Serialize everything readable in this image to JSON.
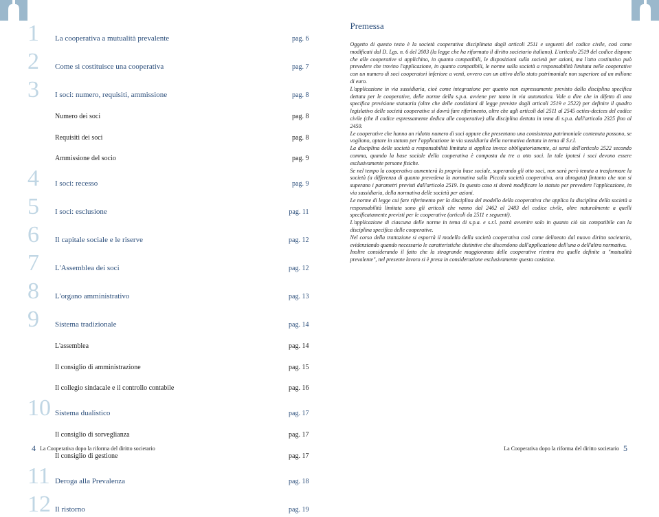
{
  "toc": [
    {
      "num": "1",
      "title": "La cooperativa a mutualità prevalente",
      "page": "pag. 6",
      "main": true
    },
    {
      "num": "2",
      "title": "Come si costituisce una cooperativa",
      "page": "pag. 7",
      "main": true
    },
    {
      "num": "3",
      "title": "I soci: numero, requisiti, ammissione",
      "page": "pag. 8",
      "main": true
    },
    {
      "num": "",
      "title": "Numero dei soci",
      "page": "pag. 8",
      "main": false
    },
    {
      "num": "",
      "title": "Requisiti dei soci",
      "page": "pag. 8",
      "main": false
    },
    {
      "num": "",
      "title": "Ammissione del socio",
      "page": "pag. 9",
      "main": false
    },
    {
      "num": "4",
      "title": "I soci: recesso",
      "page": "pag. 9",
      "main": true
    },
    {
      "num": "5",
      "title": "I soci: esclusione",
      "page": "pag. 11",
      "main": true
    },
    {
      "num": "6",
      "title": "Il capitale sociale e le riserve",
      "page": "pag. 12",
      "main": true
    },
    {
      "num": "7",
      "title": "L'Assemblea dei soci",
      "page": "pag. 12",
      "main": true
    },
    {
      "num": "8",
      "title": "L'organo amministrativo",
      "page": "pag. 13",
      "main": true
    },
    {
      "num": "9",
      "title": "Sistema tradizionale",
      "page": "pag. 14",
      "main": true
    },
    {
      "num": "",
      "title": "L'assemblea",
      "page": "pag. 14",
      "main": false
    },
    {
      "num": "",
      "title": "Il consiglio di amministrazione",
      "page": "pag. 15",
      "main": false
    },
    {
      "num": "",
      "title": "Il collegio sindacale e il controllo contabile",
      "page": "pag. 16",
      "main": false
    },
    {
      "num": "10",
      "title": "Sistema dualistico",
      "page": "pag. 17",
      "main": true
    },
    {
      "num": "",
      "title": "Il consiglio di sorveglianza",
      "page": "pag. 17",
      "main": false
    },
    {
      "num": "",
      "title": "Il consiglio di gestione",
      "page": "pag. 17",
      "main": false
    },
    {
      "num": "11",
      "title": "Deroga alla Prevalenza",
      "page": "pag. 18",
      "main": true
    },
    {
      "num": "12",
      "title": "Il ristorno",
      "page": "pag. 19",
      "main": true
    }
  ],
  "premessa": {
    "title": "Premessa",
    "body": "Oggetto di questo testo è la società cooperativa disciplinata dagli articoli 2511 e seguenti del codice civile, così come modificati dal D. Lgs. n. 6 del 2003 (la legge che ha riformato il diritto societario italiano). L'articolo 2519 del codice dispone che alle cooperative si applichino, in quanto compatibili, le disposizioni sulla società per azioni, ma l'atto costitutivo può prevedere che trovino l'applicazione, in quanto compatibili, le norme sulla società a responsabilità limitata nelle cooperative con un numero di soci cooperatori inferiore a venti, ovvero con un attivo dello stato patrimoniale non superiore ad un milione di euro.\nL'applicazione in via sussidiaria, cioè come integrazione per quanto non espressamente previsto dalla disciplina specifica dettata per le cooperative, delle norme della s.p.a. avviene per tanto in via automatica. Vale a dire che in difetto di una specifica previsione statuaria (oltre che delle condizioni di legge previste dagli articoli 2519 e 2522) per definire il quadro legislativo delle società cooperative si dovrà fare riferimento, oltre che agli articoli dal 2511 al 2545 octies-decices del codice civile (che il codice espressamente dedica alle cooperative) alla disciplina dettata in tema di s.p.a. dall'articolo 2325 fino al 2450.\nLe cooperative che hanno un ridotto numero di soci oppure che presentano una consistenza patrimoniale contenuta possono, se vogliono, optare in statuto per l'applicazione in via sussidiaria della normativa dettata in tema di S.r.l.\nLa disciplina delle società a responsabilità limitata si applica invece obbligatoriamente, ai sensi dell'articolo 2522 secondo comma, quando la base sociale della cooperativa è composta da tre a otto soci. In tale ipotesi i soci devono essere esclusivamente persone fisiche.\nSe nel tempo la cooperativa aumenterà la propria base sociale, superando gli otto soci, non sarà però tenuta a trasformare la società (a differenza di quanto prevedeva la normativa sulla Piccola società cooperativa, ora abrogata) fintanto che non si superano i parametri previsti dall'articolo 2519. In questo caso si dovrà modificare lo statuto per prevedere l'applicazione, in via sussidiaria, della normativa delle società per azioni.\nLe norme di legge cui fare riferimento per la disciplina del modello della cooperativa che applica la disciplina della società a responsabilità limitata sono gli articoli che vanno dal 2462 al 2483 del codice civile, oltre naturalmente a quelli specificatamente previsti per le cooperative (articoli da 2511 e seguenti).\nL'applicazione di ciascuna delle norme in tema di s.p.a. e s.r.l. potrà avvenire solo in quanto ciò sia compatibile con la disciplina specifica delle cooperative.\nNel corso della trattazione si esporrà il modello della società cooperativa così come delineato dal nuovo diritto societario, evidenziando quando necessario le caratteristiche distintive che discendono dall'applicazione dell'una o dell'altra normativa.\nInoltre considerando il fatto che la stragrande maggioranza delle cooperative rientra tra quelle definite a \"mutualità prevalente\", nel presente lavoro si è presa in considerazione esclusivamente questa casistica."
  },
  "footer": {
    "text": "La Cooperativa dopo la riforma del diritto societario",
    "left_page": "4",
    "right_page": "5"
  },
  "colors": {
    "accent": "#2a4d7a",
    "watermark": "#c0d6e4",
    "text": "#1a1a1a",
    "background": "#ffffff"
  }
}
